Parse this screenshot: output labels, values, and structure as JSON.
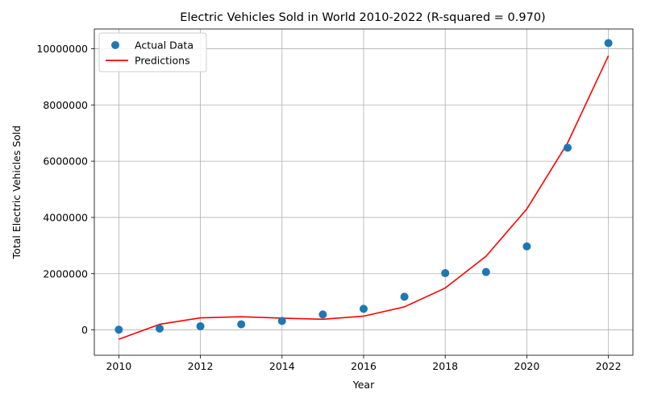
{
  "chart_data": {
    "type": "scatter",
    "title": "Electric Vehicles Sold in World 2010-2022 (R-squared = 0.970)",
    "xlabel": "Year",
    "ylabel": "Total Electric Vehicles Sold",
    "xlim": [
      2009.4,
      2022.6
    ],
    "ylim": [
      -900000,
      10700000
    ],
    "xticks": [
      2010,
      2012,
      2014,
      2016,
      2018,
      2020,
      2022
    ],
    "yticks": [
      0,
      2000000,
      4000000,
      6000000,
      8000000,
      10000000
    ],
    "grid": true,
    "legend_position": "top-left",
    "series": [
      {
        "name": "Actual Data",
        "kind": "scatter",
        "color": "#1f77b4",
        "x": [
          2010,
          2011,
          2012,
          2013,
          2014,
          2015,
          2016,
          2017,
          2018,
          2019,
          2020,
          2021,
          2022
        ],
        "y": [
          10000,
          50000,
          130000,
          200000,
          320000,
          550000,
          750000,
          1180000,
          2020000,
          2060000,
          2970000,
          6480000,
          10200000
        ]
      },
      {
        "name": "Predictions",
        "kind": "line",
        "color": "#ff0000",
        "x": [
          2010,
          2011,
          2012,
          2013,
          2014,
          2015,
          2016,
          2017,
          2018,
          2019,
          2020,
          2021,
          2022
        ],
        "y": [
          -330000,
          200000,
          430000,
          470000,
          420000,
          380000,
          490000,
          820000,
          1490000,
          2620000,
          4300000,
          6650000,
          9750000
        ]
      }
    ]
  }
}
